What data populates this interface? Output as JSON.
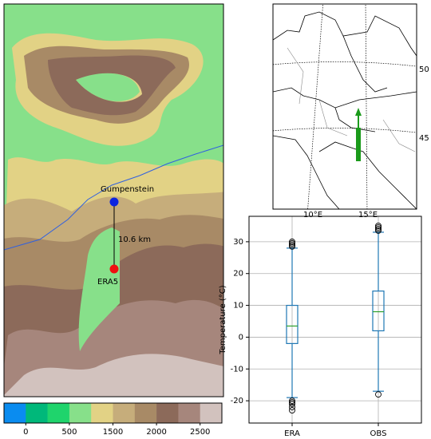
{
  "map": {
    "labels": {
      "station": "Gumpenstein",
      "grid": "ERA5",
      "distance": "10.6 km"
    },
    "colorbar": {
      "colors": [
        "#0a8cf0",
        "#00b87a",
        "#1fd46c",
        "#87e08a",
        "#e2d285",
        "#c6ad7b",
        "#a88a66",
        "#8c6a5a",
        "#a6867c",
        "#d2c2be"
      ],
      "tick_labels": [
        "0",
        "500",
        "1500",
        "2000",
        "2500"
      ]
    }
  },
  "locator": {
    "lon_labels": [
      "10°E",
      "15°E"
    ],
    "lat_labels": [
      "50",
      "45"
    ]
  },
  "chart_data": {
    "type": "box",
    "ylabel": "Temperature (°C)",
    "ylim": [
      -27,
      38
    ],
    "yticks": [
      -20,
      -10,
      0,
      10,
      20,
      30
    ],
    "grid": true,
    "box_color": "#1f77b4",
    "median_color": "#2ca02c",
    "series": [
      {
        "name": "ERA",
        "whislo": -19,
        "q1": -2,
        "median": 3.5,
        "q3": 10,
        "whishi": 28,
        "fliers": [
          28.5,
          29,
          29.5,
          30,
          -20,
          -20.5,
          -21,
          -22,
          -23
        ]
      },
      {
        "name": "OBS",
        "whislo": -17,
        "q1": 2,
        "median": 8,
        "q3": 14.5,
        "whishi": 33,
        "fliers": [
          33.5,
          34,
          34.5,
          35,
          -18
        ]
      }
    ]
  }
}
